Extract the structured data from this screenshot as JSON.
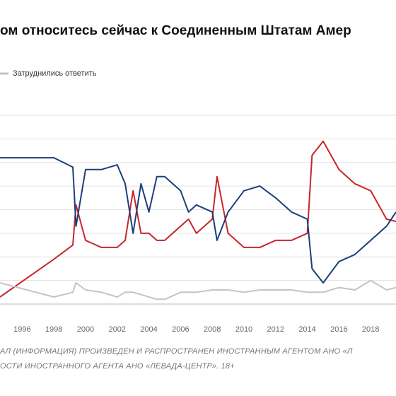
{
  "chart_data": {
    "type": "line",
    "title": "ом относитесь сейчас к Соединенным Штатам Амер",
    "x": [
      1994.6,
      1998,
      1999.2,
      1999.4,
      2000,
      2001,
      2002,
      2002.5,
      2003,
      2003.5,
      2004,
      2004.5,
      2005,
      2006,
      2006.5,
      2007,
      2008,
      2008.3,
      2009,
      2010,
      2011,
      2012,
      2013,
      2014,
      2014.3,
      2015,
      2016,
      2017,
      2018,
      2019,
      2019.6
    ],
    "series": [
      {
        "color": "#c8262b",
        "values": [
          3,
          19,
          25,
          42,
          27,
          24,
          24,
          27,
          48,
          30,
          30,
          27,
          27,
          33,
          36,
          30,
          36,
          54,
          30,
          24,
          24,
          27,
          27,
          30,
          63,
          69,
          57,
          51,
          48,
          36,
          35
        ]
      },
      {
        "color": "#1b3f7a",
        "values": [
          62,
          62,
          58,
          33,
          57,
          57,
          59,
          51,
          30,
          51,
          39,
          54,
          54,
          48,
          39,
          42,
          39,
          27,
          39,
          48,
          50,
          45,
          39,
          36,
          15,
          9,
          18,
          21,
          27,
          33,
          39
        ]
      },
      {
        "name": "Затруднились ответить",
        "color": "#c4c4c4",
        "values": [
          9,
          3,
          5,
          9,
          6,
          5,
          3,
          5,
          5,
          4,
          3,
          2,
          2,
          5,
          5,
          5,
          6,
          6,
          6,
          5,
          6,
          6,
          6,
          5,
          5,
          5,
          7,
          6,
          10,
          6,
          7
        ]
      }
    ],
    "xlim": [
      1994.6,
      2019.6
    ],
    "xticks": [
      1996,
      1998,
      2000,
      2002,
      2004,
      2006,
      2008,
      2010,
      2012,
      2014,
      2016,
      2018
    ],
    "ylim": [
      0,
      80
    ],
    "yticks": [
      0,
      10,
      20,
      30,
      40,
      50,
      60,
      70,
      80
    ],
    "grid": true,
    "footnotes": [
      "АЛ (ИНФОРМАЦИЯ) ПРОИЗВЕДЕН И РАСПРОСТРАНЕН ИНОСТРАННЫМ АГЕНТОМ АНО «Л",
      "ОСТИ ИНОСТРАННОГО АГЕНТА АНО «ЛЕВАДА-ЦЕНТР». 18+"
    ]
  }
}
